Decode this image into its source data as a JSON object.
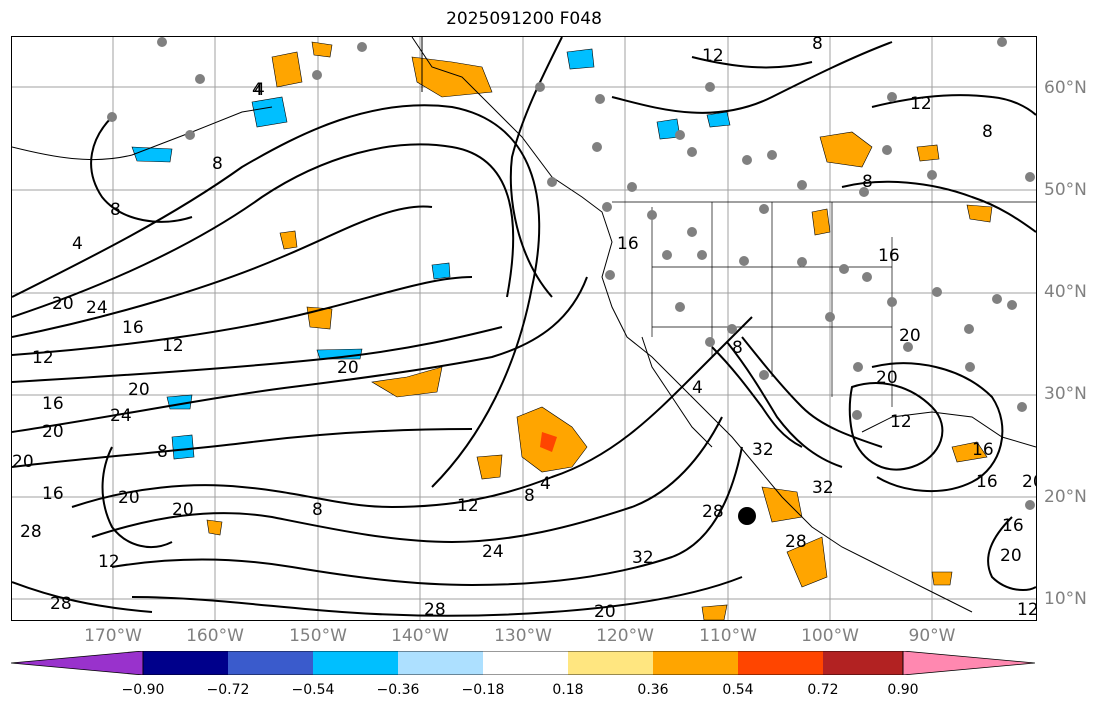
{
  "title": "2025091200 F048",
  "map": {
    "lat_labels": [
      "60°N",
      "50°N",
      "40°N",
      "30°N",
      "20°N",
      "10°N"
    ],
    "lon_labels": [
      "170°W",
      "160°W",
      "150°W",
      "140°W",
      "130°W",
      "120°W",
      "110°W",
      "100°W",
      "90°W"
    ],
    "contour_labels": [
      "12",
      "12",
      "8",
      "4",
      "4",
      "8",
      "8",
      "8",
      "8",
      "16",
      "16",
      "16",
      "20",
      "20",
      "20",
      "20",
      "24",
      "24",
      "12",
      "12",
      "12",
      "20",
      "20",
      "20",
      "20",
      "16",
      "16",
      "20",
      "16",
      "12",
      "8",
      "8",
      "4",
      "12",
      "8",
      "4",
      "24",
      "28",
      "28",
      "28",
      "28",
      "32",
      "32",
      "32",
      "28",
      "16",
      "20",
      "12",
      "8",
      "4",
      "20",
      "16",
      "20"
    ],
    "station_marker": "black-dot"
  },
  "colorbar": {
    "ticks": [
      "−0.90",
      "−0.72",
      "−0.54",
      "−0.36",
      "−0.18",
      "0.18",
      "0.36",
      "0.54",
      "0.72",
      "0.90"
    ],
    "colors": [
      "#9932cc",
      "#00008b",
      "#3a5bcc",
      "#00bfff",
      "#ade0ff",
      "#ffffff",
      "#ffe680",
      "#ffa500",
      "#ff4500",
      "#b22222",
      "#ff88b0"
    ]
  }
}
